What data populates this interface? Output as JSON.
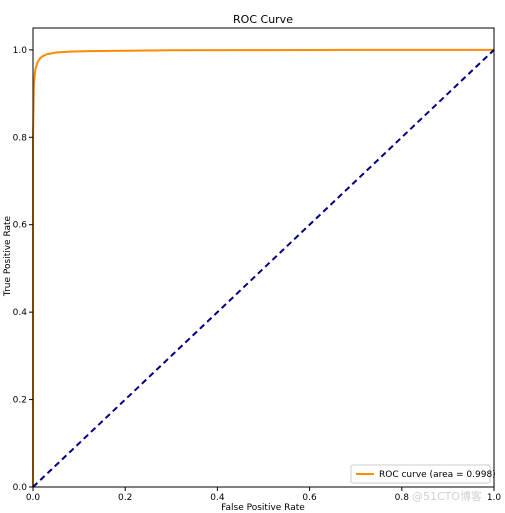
{
  "chart_data": {
    "type": "line",
    "title": "ROC Curve",
    "xlabel": "False Positive Rate",
    "ylabel": "True Positive Rate",
    "xlim": [
      0.0,
      1.0
    ],
    "ylim": [
      0.0,
      1.05
    ],
    "xticks": [
      "0.0",
      "0.2",
      "0.4",
      "0.6",
      "0.8",
      "1.0"
    ],
    "yticks": [
      "0.0",
      "0.2",
      "0.4",
      "0.6",
      "0.8",
      "1.0"
    ],
    "grid": false,
    "legend_position": "lower-right",
    "series": [
      {
        "name": "ROC curve (area = 0.998)",
        "color": "#ff8c00",
        "style": "solid",
        "x": [
          0.0,
          0.0,
          0.002,
          0.005,
          0.01,
          0.015,
          0.02,
          0.03,
          0.05,
          0.08,
          0.12,
          0.2,
          0.3,
          0.5,
          0.7,
          1.0
        ],
        "y": [
          0.0,
          0.8,
          0.92,
          0.955,
          0.972,
          0.98,
          0.985,
          0.99,
          0.994,
          0.996,
          0.997,
          0.998,
          0.999,
          0.9995,
          1.0,
          1.0
        ]
      },
      {
        "color": "#000080",
        "style": "dashed",
        "x": [
          0.0,
          1.0
        ],
        "y": [
          0.0,
          1.0
        ]
      }
    ]
  },
  "watermark": "@51CTO博客"
}
